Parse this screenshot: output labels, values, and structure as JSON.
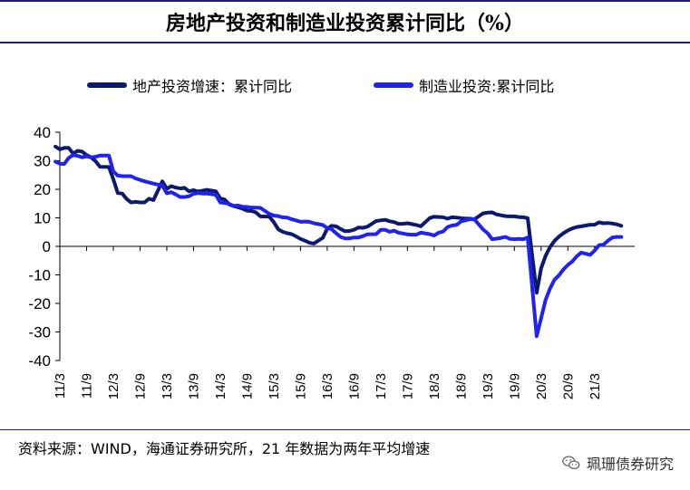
{
  "page": {
    "title": "房地产投资和制造业投资累计同比（%）",
    "source": "资料来源：WIND，海通证券研究所，21 年数据为两年平均增速",
    "watermark": "珮珊债券研究"
  },
  "colors": {
    "series1": "#0b1a6e",
    "series2": "#1f22f0",
    "rule": "#1f1f6b"
  },
  "chart_data": {
    "type": "line",
    "title": "房地产投资和制造业投资累计同比（%）",
    "xlabel": "",
    "ylabel": "",
    "ylim": [
      -40,
      40
    ],
    "yticks": [
      40,
      30,
      20,
      10,
      0,
      -10,
      -20,
      -30,
      -40
    ],
    "grid": false,
    "legend": "top-center",
    "xticks": [
      "11/3",
      "11/9",
      "12/3",
      "12/9",
      "13/3",
      "13/9",
      "14/3",
      "14/9",
      "15/3",
      "15/9",
      "16/3",
      "16/9",
      "17/3",
      "17/9",
      "18/3",
      "18/9",
      "19/3",
      "19/9",
      "20/3",
      "20/9",
      "21/3"
    ],
    "series": [
      {
        "name": "地产投资增速：累计同比",
        "color": "#0b1a6e",
        "points": [
          [
            "2011-02",
            35
          ],
          [
            "2011-03",
            34
          ],
          [
            "2011-04",
            34.5
          ],
          [
            "2011-05",
            34.5
          ],
          [
            "2011-06",
            32.5
          ],
          [
            "2011-07",
            33.5
          ],
          [
            "2011-08",
            33.2
          ],
          [
            "2011-09",
            32
          ],
          [
            "2011-10",
            31.2
          ],
          [
            "2011-11",
            29.9
          ],
          [
            "2011-12",
            27.9
          ],
          [
            "2012-02",
            27.8
          ],
          [
            "2012-03",
            23.5
          ],
          [
            "2012-04",
            18.7
          ],
          [
            "2012-05",
            18.5
          ],
          [
            "2012-06",
            16.6
          ],
          [
            "2012-07",
            15.4
          ],
          [
            "2012-08",
            15.6
          ],
          [
            "2012-09",
            15.4
          ],
          [
            "2012-10",
            15.4
          ],
          [
            "2012-11",
            16.7
          ],
          [
            "2012-12",
            16.2
          ],
          [
            "2013-02",
            22.8
          ],
          [
            "2013-03",
            20.2
          ],
          [
            "2013-04",
            21.1
          ],
          [
            "2013-05",
            20.6
          ],
          [
            "2013-06",
            20.3
          ],
          [
            "2013-07",
            20.5
          ],
          [
            "2013-08",
            19.3
          ],
          [
            "2013-09",
            19.7
          ],
          [
            "2013-10",
            19.2
          ],
          [
            "2013-11",
            19.5
          ],
          [
            "2013-12",
            19.8
          ],
          [
            "2014-02",
            19.3
          ],
          [
            "2014-03",
            16.8
          ],
          [
            "2014-04",
            16.4
          ],
          [
            "2014-05",
            14.7
          ],
          [
            "2014-06",
            14.1
          ],
          [
            "2014-07",
            13.7
          ],
          [
            "2014-08",
            13.2
          ],
          [
            "2014-09",
            12.5
          ],
          [
            "2014-10",
            12.4
          ],
          [
            "2014-11",
            11.9
          ],
          [
            "2014-12",
            10.5
          ],
          [
            "2015-02",
            10.4
          ],
          [
            "2015-03",
            8.5
          ],
          [
            "2015-04",
            6
          ],
          [
            "2015-05",
            5.1
          ],
          [
            "2015-06",
            4.6
          ],
          [
            "2015-07",
            4.3
          ],
          [
            "2015-08",
            3.5
          ],
          [
            "2015-09",
            2.6
          ],
          [
            "2015-10",
            2
          ],
          [
            "2015-11",
            1.3
          ],
          [
            "2015-12",
            1
          ],
          [
            "2016-02",
            3
          ],
          [
            "2016-03",
            6.2
          ],
          [
            "2016-04",
            7.2
          ],
          [
            "2016-05",
            7
          ],
          [
            "2016-06",
            6.1
          ],
          [
            "2016-07",
            5.3
          ],
          [
            "2016-08",
            5.4
          ],
          [
            "2016-09",
            5.8
          ],
          [
            "2016-10",
            6.6
          ],
          [
            "2016-11",
            6.5
          ],
          [
            "2016-12",
            6.9
          ],
          [
            "2017-02",
            8.9
          ],
          [
            "2017-03",
            9.1
          ],
          [
            "2017-04",
            9.3
          ],
          [
            "2017-05",
            8.8
          ],
          [
            "2017-06",
            8.5
          ],
          [
            "2017-07",
            7.9
          ],
          [
            "2017-08",
            7.9
          ],
          [
            "2017-09",
            8.1
          ],
          [
            "2017-10",
            7.8
          ],
          [
            "2017-11",
            7.5
          ],
          [
            "2017-12",
            7
          ],
          [
            "2018-02",
            9.9
          ],
          [
            "2018-03",
            10.4
          ],
          [
            "2018-04",
            10.3
          ],
          [
            "2018-05",
            10.2
          ],
          [
            "2018-06",
            9.7
          ],
          [
            "2018-07",
            10.2
          ],
          [
            "2018-08",
            10.1
          ],
          [
            "2018-09",
            9.9
          ],
          [
            "2018-10",
            9.7
          ],
          [
            "2018-11",
            9.7
          ],
          [
            "2018-12",
            9.5
          ],
          [
            "2019-02",
            11.6
          ],
          [
            "2019-03",
            11.8
          ],
          [
            "2019-04",
            11.9
          ],
          [
            "2019-05",
            11.2
          ],
          [
            "2019-06",
            10.9
          ],
          [
            "2019-07",
            10.6
          ],
          [
            "2019-08",
            10.5
          ],
          [
            "2019-09",
            10.5
          ],
          [
            "2019-10",
            10.3
          ],
          [
            "2019-11",
            10.2
          ],
          [
            "2019-12",
            9.9
          ],
          [
            "2020-02",
            -16.3
          ],
          [
            "2020-03",
            -7.7
          ],
          [
            "2020-04",
            -3.3
          ],
          [
            "2020-05",
            -0.3
          ],
          [
            "2020-06",
            1.9
          ],
          [
            "2020-07",
            3.4
          ],
          [
            "2020-08",
            4.6
          ],
          [
            "2020-09",
            5.6
          ],
          [
            "2020-10",
            6.3
          ],
          [
            "2020-11",
            6.8
          ],
          [
            "2020-12",
            7
          ],
          [
            "2021-02",
            7.6
          ],
          [
            "2021-03",
            7.6
          ],
          [
            "2021-04",
            8.4
          ],
          [
            "2021-05",
            8.1
          ],
          [
            "2021-06",
            8.2
          ],
          [
            "2021-07",
            8
          ],
          [
            "2021-08",
            7.7
          ],
          [
            "2021-09",
            7.2
          ]
        ]
      },
      {
        "name": "制造业投资:累计同比",
        "color": "#1f22f0",
        "points": [
          [
            "2011-02",
            29.7
          ],
          [
            "2011-03",
            29
          ],
          [
            "2011-04",
            28.9
          ],
          [
            "2011-05",
            31
          ],
          [
            "2011-06",
            32
          ],
          [
            "2011-07",
            31.7
          ],
          [
            "2011-08",
            31.2
          ],
          [
            "2011-09",
            31.6
          ],
          [
            "2011-10",
            31.2
          ],
          [
            "2011-11",
            31.4
          ],
          [
            "2011-12",
            31.8
          ],
          [
            "2012-02",
            31.8
          ],
          [
            "2012-03",
            26.3
          ],
          [
            "2012-04",
            24.8
          ],
          [
            "2012-05",
            24.6
          ],
          [
            "2012-06",
            24.6
          ],
          [
            "2012-07",
            24.6
          ],
          [
            "2012-08",
            23.8
          ],
          [
            "2012-09",
            23.3
          ],
          [
            "2012-10",
            22.8
          ],
          [
            "2012-11",
            22.4
          ],
          [
            "2012-12",
            22
          ],
          [
            "2013-02",
            21.3
          ],
          [
            "2013-03",
            18.6
          ],
          [
            "2013-04",
            19
          ],
          [
            "2013-05",
            18.2
          ],
          [
            "2013-06",
            17.3
          ],
          [
            "2013-07",
            17.3
          ],
          [
            "2013-08",
            17.6
          ],
          [
            "2013-09",
            18.4
          ],
          [
            "2013-10",
            18.7
          ],
          [
            "2013-11",
            18.5
          ],
          [
            "2013-12",
            18.5
          ],
          [
            "2014-02",
            18.1
          ],
          [
            "2014-03",
            15.4
          ],
          [
            "2014-04",
            15.2
          ],
          [
            "2014-05",
            14.9
          ],
          [
            "2014-06",
            14.2
          ],
          [
            "2014-07",
            14.3
          ],
          [
            "2014-08",
            13.9
          ],
          [
            "2014-09",
            13.8
          ],
          [
            "2014-10",
            13.6
          ],
          [
            "2014-11",
            13.6
          ],
          [
            "2014-12",
            13.5
          ],
          [
            "2015-02",
            11.4
          ],
          [
            "2015-03",
            10.8
          ],
          [
            "2015-04",
            10.6
          ],
          [
            "2015-05",
            10.2
          ],
          [
            "2015-06",
            10.1
          ],
          [
            "2015-07",
            9.5
          ],
          [
            "2015-08",
            9.1
          ],
          [
            "2015-09",
            8.6
          ],
          [
            "2015-10",
            8.7
          ],
          [
            "2015-11",
            8.6
          ],
          [
            "2015-12",
            8.1
          ],
          [
            "2016-02",
            7.5
          ],
          [
            "2016-03",
            6.4
          ],
          [
            "2016-04",
            6
          ],
          [
            "2016-05",
            4.6
          ],
          [
            "2016-06",
            3.3
          ],
          [
            "2016-07",
            2.8
          ],
          [
            "2016-08",
            2.8
          ],
          [
            "2016-09",
            3.1
          ],
          [
            "2016-10",
            3.1
          ],
          [
            "2016-11",
            3.6
          ],
          [
            "2016-12",
            4.2
          ],
          [
            "2017-02",
            4.3
          ],
          [
            "2017-03",
            5.8
          ],
          [
            "2017-04",
            5.8
          ],
          [
            "2017-05",
            5.1
          ],
          [
            "2017-06",
            5.5
          ],
          [
            "2017-07",
            4.8
          ],
          [
            "2017-08",
            4.5
          ],
          [
            "2017-09",
            4.2
          ],
          [
            "2017-10",
            4.1
          ],
          [
            "2017-11",
            4.1
          ],
          [
            "2017-12",
            4.8
          ],
          [
            "2018-02",
            4.3
          ],
          [
            "2018-03",
            3.8
          ],
          [
            "2018-04",
            4.8
          ],
          [
            "2018-05",
            5.2
          ],
          [
            "2018-06",
            6.8
          ],
          [
            "2018-07",
            7.3
          ],
          [
            "2018-08",
            7.5
          ],
          [
            "2018-09",
            8.7
          ],
          [
            "2018-10",
            9.1
          ],
          [
            "2018-11",
            9.5
          ],
          [
            "2018-12",
            9.5
          ],
          [
            "2019-02",
            5.9
          ],
          [
            "2019-03",
            4.6
          ],
          [
            "2019-04",
            2.5
          ],
          [
            "2019-05",
            2.7
          ],
          [
            "2019-06",
            3
          ],
          [
            "2019-07",
            3.3
          ],
          [
            "2019-08",
            2.6
          ],
          [
            "2019-09",
            2.5
          ],
          [
            "2019-10",
            2.6
          ],
          [
            "2019-11",
            2.5
          ],
          [
            "2019-12",
            3.1
          ],
          [
            "2020-02",
            -31.5
          ],
          [
            "2020-03",
            -25.2
          ],
          [
            "2020-04",
            -18.8
          ],
          [
            "2020-05",
            -14.8
          ],
          [
            "2020-06",
            -11.7
          ],
          [
            "2020-07",
            -10.2
          ],
          [
            "2020-08",
            -8.1
          ],
          [
            "2020-09",
            -6.5
          ],
          [
            "2020-10",
            -5.3
          ],
          [
            "2020-11",
            -3.5
          ],
          [
            "2020-12",
            -2.2
          ],
          [
            "2021-02",
            -3
          ],
          [
            "2021-03",
            -1.5
          ],
          [
            "2021-04",
            0.4
          ],
          [
            "2021-05",
            0.6
          ],
          [
            "2021-06",
            2
          ],
          [
            "2021-07",
            3.1
          ],
          [
            "2021-08",
            3.3
          ],
          [
            "2021-09",
            3.3
          ]
        ]
      }
    ]
  }
}
